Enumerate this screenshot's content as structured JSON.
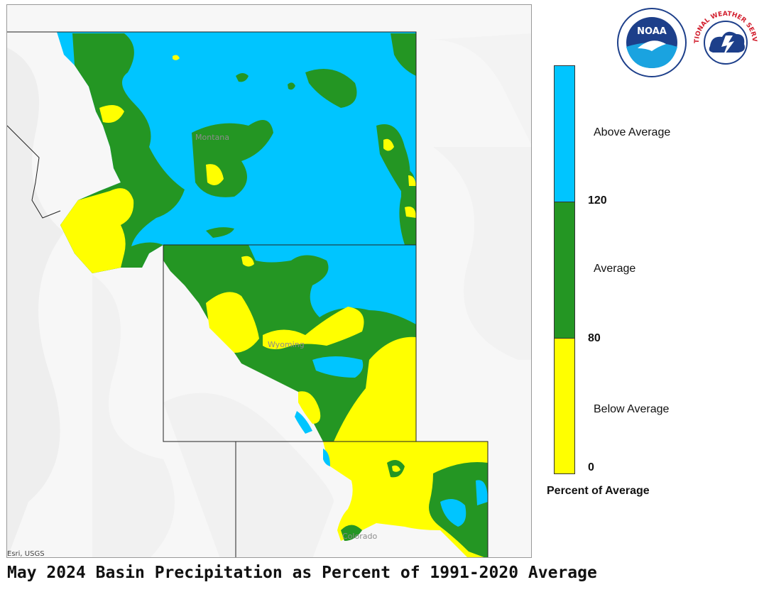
{
  "caption": "May 2024 Basin Precipitation as Percent of 1991-2020 Average",
  "map": {
    "credit": "Esri, USGS",
    "state_labels": [
      "Montana",
      "Wyoming",
      "Colorado"
    ]
  },
  "legend": {
    "title": "Percent of Average",
    "classes": [
      {
        "label": "Above Average",
        "color": "#00c5ff"
      },
      {
        "label": "Average",
        "color": "#249623"
      },
      {
        "label": "Below Average",
        "color": "#ffff00"
      }
    ],
    "breaks": [
      "120",
      "80",
      "0"
    ]
  },
  "logos": {
    "noaa": {
      "icon": "noaa-logo",
      "text": "NOAA"
    },
    "nws": {
      "icon": "nws-logo",
      "text": "NATIONAL WEATHER SERVICE"
    }
  },
  "colors": {
    "above": "#00c5ff",
    "average": "#249623",
    "below": "#ffff00",
    "terrain": "#f2f2f2"
  }
}
